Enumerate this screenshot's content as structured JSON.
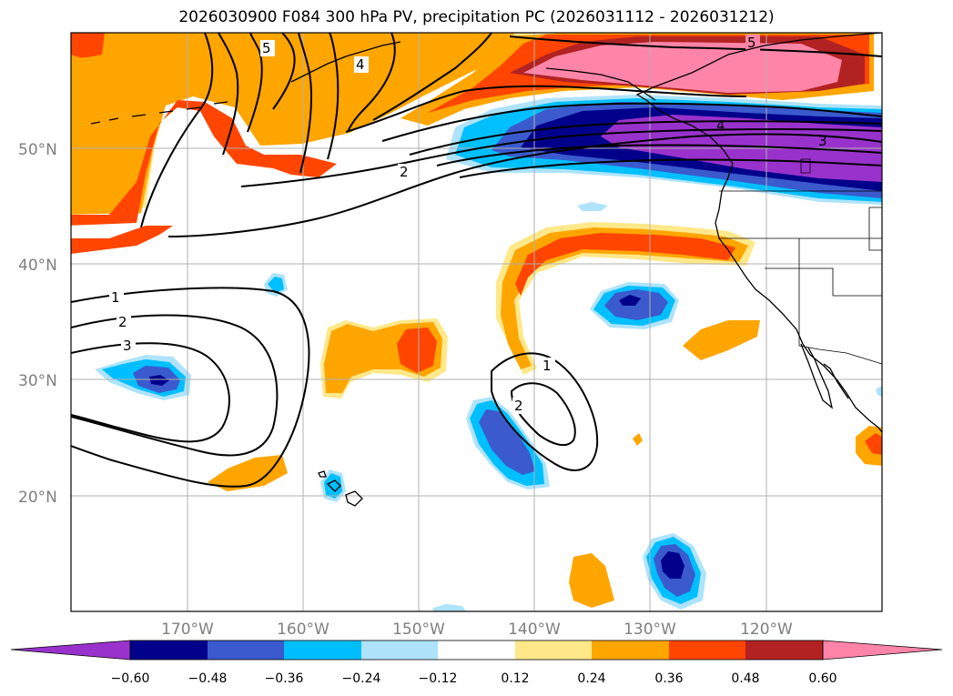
{
  "title": "2026030900 F084 300 hPa PV, precipitation PC (2026031112 - 2026031212)",
  "latitude_labels": [
    "50°N",
    "40°N",
    "30°N",
    "20°N"
  ],
  "longitude_labels": [
    "170°W",
    "160°W",
    "150°W",
    "140°W",
    "130°W",
    "120°W"
  ],
  "colorbar": {
    "tick_labels": [
      "−0.60",
      "−0.48",
      "−0.36",
      "−0.24",
      "−0.12",
      "0.12",
      "0.24",
      "0.36",
      "0.48",
      "0.60"
    ],
    "colors": [
      "#9932cc",
      "#00008b",
      "#3a5acd",
      "#00bfff",
      "#aee3fb",
      "#ffffff",
      "#ffe88a",
      "#ffa500",
      "#ff4500",
      "#b22222",
      "#ff85a8"
    ]
  },
  "contour_labels": [
    "5",
    "4",
    "2",
    "5",
    "4",
    "3",
    "1",
    "2",
    "3",
    "1",
    "2"
  ],
  "colors": {
    "orange": "#ffa500",
    "red_orange": "#ff4500",
    "light_yellow": "#ffe88a",
    "dark_red": "#b22222",
    "pink": "#ff85a8",
    "deep_sky_blue": "#00bfff",
    "light_blue": "#aee3fb",
    "royal_blue": "#3a5acd",
    "navy": "#00008b",
    "purple": "#9932cc"
  }
}
